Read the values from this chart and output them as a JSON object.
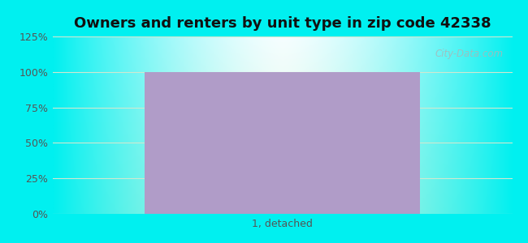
{
  "title": "Owners and renters by unit type in zip code 42338",
  "categories": [
    "1, detached"
  ],
  "values": [
    100
  ],
  "bar_color": "#b09cc8",
  "bar_width": 0.6,
  "ylim": [
    0,
    125
  ],
  "yticks": [
    0,
    25,
    50,
    75,
    100,
    125
  ],
  "ytick_labels": [
    "0%",
    "25%",
    "50%",
    "75%",
    "100%",
    "125%"
  ],
  "title_fontsize": 13,
  "tick_fontsize": 9,
  "watermark_text": "City-Data.com",
  "bg_outer_color": "#00f0f0",
  "bg_top_color": "#f5feff",
  "bg_bottom_color": "#d8f5e0",
  "grid_color": "#d0e8d0",
  "grid_linewidth": 0.8
}
